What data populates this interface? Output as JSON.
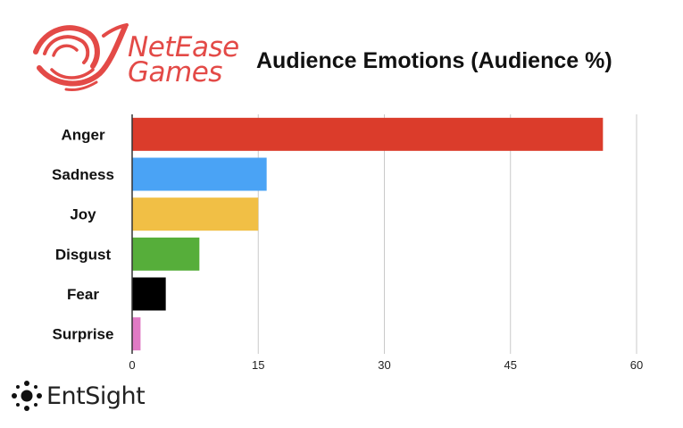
{
  "branding": {
    "logo_line1": "NetEase",
    "logo_line2": "Games",
    "logo_color": "#e34a47",
    "logo_icon": "netease-swirl-icon",
    "footer_brand": "EntSight",
    "footer_icon": "entsight-dots-icon"
  },
  "chart_data": {
    "type": "bar",
    "orientation": "horizontal",
    "title": "Audience Emotions  (Audience %)",
    "categories": [
      "Anger",
      "Sadness",
      "Joy",
      "Disgust",
      "Fear",
      "Surprise"
    ],
    "values": [
      56,
      16,
      15,
      8,
      4,
      1
    ],
    "colors": [
      "#db3c2b",
      "#4aa3f5",
      "#f1bf45",
      "#56ae3a",
      "#000000",
      "#e07ac4"
    ],
    "xlim": [
      0,
      60
    ],
    "xticks": [
      "0",
      "15",
      "30",
      "45",
      "60"
    ],
    "grid": true,
    "legend": "none",
    "xlabel": "",
    "ylabel": ""
  }
}
